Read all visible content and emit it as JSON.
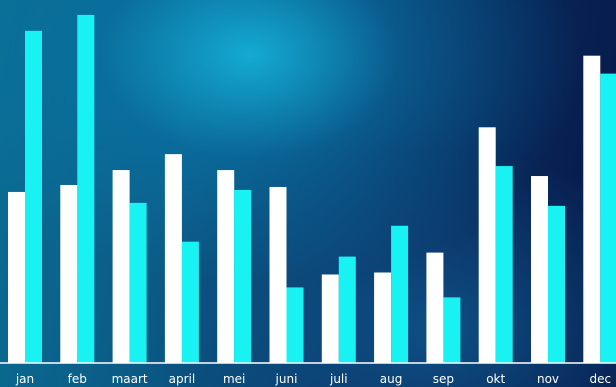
{
  "chart_data": {
    "type": "bar",
    "categories": [
      "jan",
      "feb",
      "maart",
      "april",
      "mei",
      "juni",
      "juli",
      "aug",
      "sep",
      "okt",
      "nov",
      "dec"
    ],
    "series": [
      {
        "values": [
          172,
          179,
          194,
          210,
          194,
          177,
          89,
          91,
          111,
          237,
          188,
          309
        ]
      },
      {
        "values": [
          334,
          350,
          161,
          122,
          174,
          76,
          107,
          138,
          66,
          198,
          158,
          291
        ]
      }
    ],
    "ylim": [
      0,
      365
    ],
    "grid": false,
    "colors": [
      "#ffffff",
      "#19f2f2"
    ],
    "title": "",
    "xlabel": "",
    "ylabel": ""
  }
}
